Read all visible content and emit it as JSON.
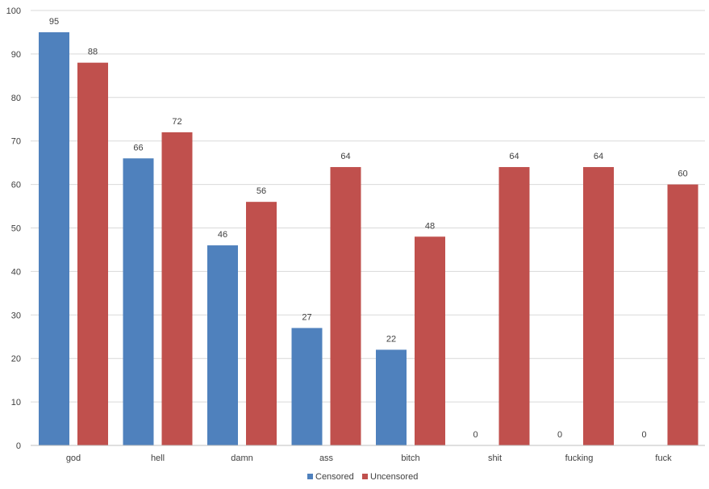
{
  "chart_data": {
    "type": "bar",
    "categories": [
      "god",
      "hell",
      "damn",
      "ass",
      "bitch",
      "shit",
      "fucking",
      "fuck"
    ],
    "series": [
      {
        "name": "Censored",
        "color": "#4f81bd",
        "values": [
          95,
          66,
          46,
          27,
          22,
          0,
          0,
          0
        ]
      },
      {
        "name": "Uncensored",
        "color": "#c0504d",
        "values": [
          88,
          72,
          56,
          64,
          48,
          64,
          64,
          60
        ]
      }
    ],
    "yticks": [
      0,
      10,
      20,
      30,
      40,
      50,
      60,
      70,
      80,
      90,
      100
    ],
    "ylim": [
      0,
      100
    ],
    "grid": true,
    "legend": "bottom-center",
    "data_labels": true
  }
}
